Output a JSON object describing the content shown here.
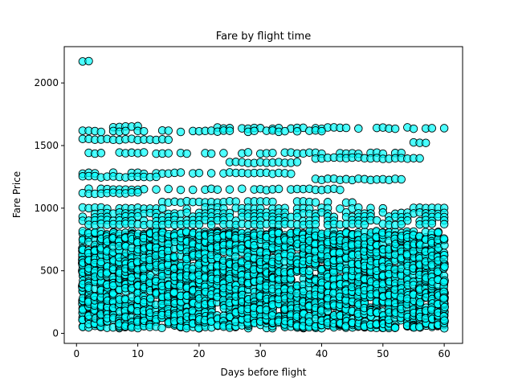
{
  "chart_data": {
    "type": "scatter",
    "title": "Fare by flight time",
    "xlabel": "Days before flight",
    "ylabel": "Fare Price",
    "xlim": [
      -2,
      63
    ],
    "ylim": [
      -80,
      2290
    ],
    "xticks": [
      0,
      10,
      20,
      30,
      40,
      50,
      60
    ],
    "yticks": [
      0,
      500,
      1000,
      1500,
      2000
    ],
    "grid": false,
    "marker": {
      "fill": "#00ffff",
      "edge": "#000000",
      "alpha": 0.7
    },
    "x_range": [
      1,
      60
    ],
    "dense_fare_band": [
      40,
      820
    ],
    "fare_bands": [
      {
        "y": 2175,
        "x": [
          1,
          2
        ]
      },
      {
        "y": 1650,
        "x": [
          6,
          10
        ]
      },
      {
        "y": 1640,
        "x": [
          23,
          60
        ]
      },
      {
        "y": 1615,
        "x": [
          1,
          40
        ]
      },
      {
        "y": 1550,
        "x": [
          1,
          15
        ]
      },
      {
        "y": 1525,
        "x": [
          55,
          57
        ]
      },
      {
        "y": 1440,
        "x": [
          1,
          53
        ]
      },
      {
        "y": 1400,
        "x": [
          39,
          56
        ]
      },
      {
        "y": 1365,
        "x": [
          25,
          36
        ]
      },
      {
        "y": 1280,
        "x": [
          1,
          35
        ]
      },
      {
        "y": 1250,
        "x": [
          1,
          13
        ]
      },
      {
        "y": 1230,
        "x": [
          39,
          53
        ]
      },
      {
        "y": 1150,
        "x": [
          1,
          43
        ]
      },
      {
        "y": 1120,
        "x": [
          1,
          10
        ]
      },
      {
        "y": 1050,
        "x": [
          13,
          45
        ]
      },
      {
        "y": 1000,
        "x": [
          1,
          60
        ]
      },
      {
        "y": 960,
        "x": [
          1,
          60
        ]
      },
      {
        "y": 930,
        "x": [
          1,
          60
        ]
      },
      {
        "y": 900,
        "x": [
          1,
          60
        ]
      },
      {
        "y": 870,
        "x": [
          1,
          60
        ]
      }
    ]
  }
}
